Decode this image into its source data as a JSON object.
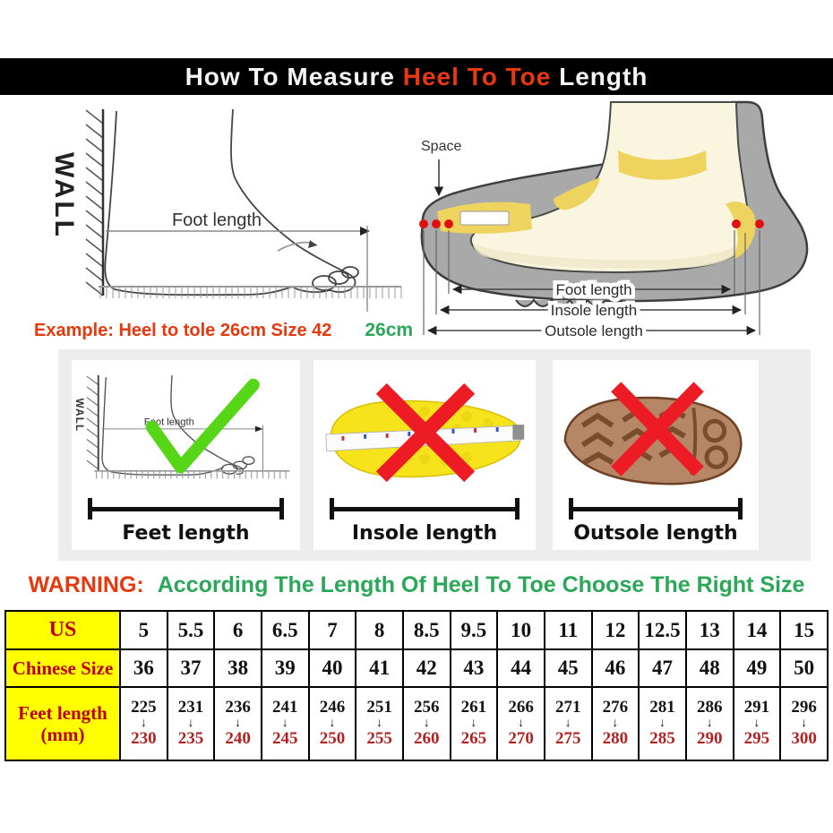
{
  "colors": {
    "title_bar_bg": "#000000",
    "red_accent": "#e8380d",
    "green_accent": "#2aa757",
    "check_green": "#55d717",
    "cross_red": "#ed1c24",
    "table_header_bg": "#ffff00",
    "table_header_text": "#c00000",
    "range_to_red": "#b22222"
  },
  "title": {
    "prefix": "How To Measure ",
    "highlight": "Heel To Toe",
    "suffix": " Length"
  },
  "wall_diagram": {
    "wall_label": "WALL",
    "foot_length_label": "Foot length",
    "example_text": "Example: Heel to tole 26cm Size 42",
    "ruler_value": "26cm"
  },
  "shoe_diagram": {
    "space_label": "Space",
    "foot_length_label": "Foot length",
    "insole_length_label": "Insole length",
    "outsole_length_label": "Outsole length"
  },
  "panels": [
    {
      "label": "Feet length",
      "mark": "check",
      "wall_label": "WALL",
      "inner_label": "Foot length"
    },
    {
      "label": "Insole length",
      "mark": "cross"
    },
    {
      "label": "Outsole length",
      "mark": "cross"
    }
  ],
  "warning": {
    "label": "WARNING:",
    "message": "According The Length Of Heel To Toe Choose The Right Size"
  },
  "size_table": {
    "rows": [
      {
        "header": "US",
        "values": [
          "5",
          "5.5",
          "6",
          "6.5",
          "7",
          "8",
          "8.5",
          "9.5",
          "10",
          "11",
          "12",
          "12.5",
          "13",
          "14",
          "15"
        ]
      },
      {
        "header": "Chinese Size",
        "values": [
          "36",
          "37",
          "38",
          "39",
          "40",
          "41",
          "42",
          "43",
          "44",
          "45",
          "46",
          "47",
          "48",
          "49",
          "50"
        ]
      },
      {
        "header": "Feet length (mm)",
        "arrow_icon": "↓",
        "ranges": [
          {
            "from": "225",
            "to": "230"
          },
          {
            "from": "231",
            "to": "235"
          },
          {
            "from": "236",
            "to": "240"
          },
          {
            "from": "241",
            "to": "245"
          },
          {
            "from": "246",
            "to": "250"
          },
          {
            "from": "251",
            "to": "255"
          },
          {
            "from": "256",
            "to": "260"
          },
          {
            "from": "261",
            "to": "265"
          },
          {
            "from": "266",
            "to": "270"
          },
          {
            "from": "271",
            "to": "275"
          },
          {
            "from": "276",
            "to": "280"
          },
          {
            "from": "281",
            "to": "285"
          },
          {
            "from": "286",
            "to": "290"
          },
          {
            "from": "291",
            "to": "295"
          },
          {
            "from": "296",
            "to": "300"
          }
        ]
      }
    ]
  }
}
